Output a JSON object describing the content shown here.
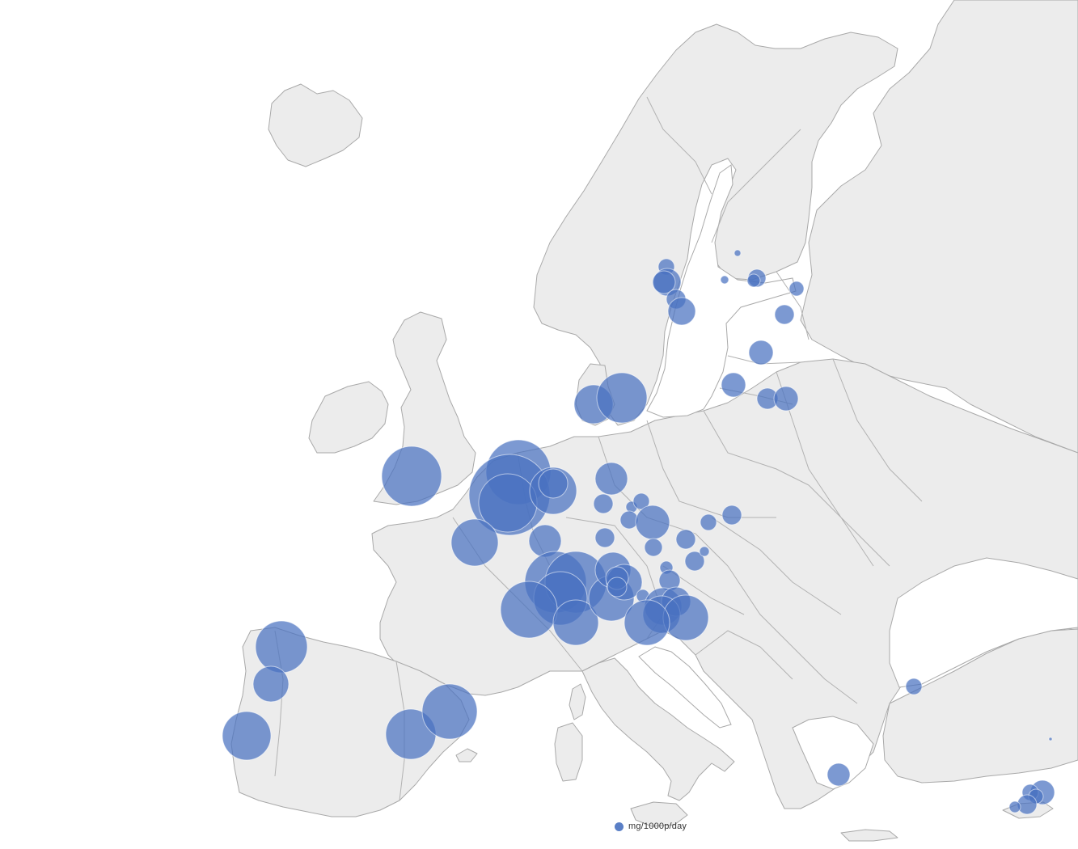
{
  "map": {
    "land_color": "#ececec",
    "border_color": "#a9a9a9",
    "sea_color": "#ffffff",
    "bubble_color": "#4a72c0"
  },
  "legend": {
    "label": "mg/1000p/day",
    "marker_color": "#5a7fc6"
  }
}
